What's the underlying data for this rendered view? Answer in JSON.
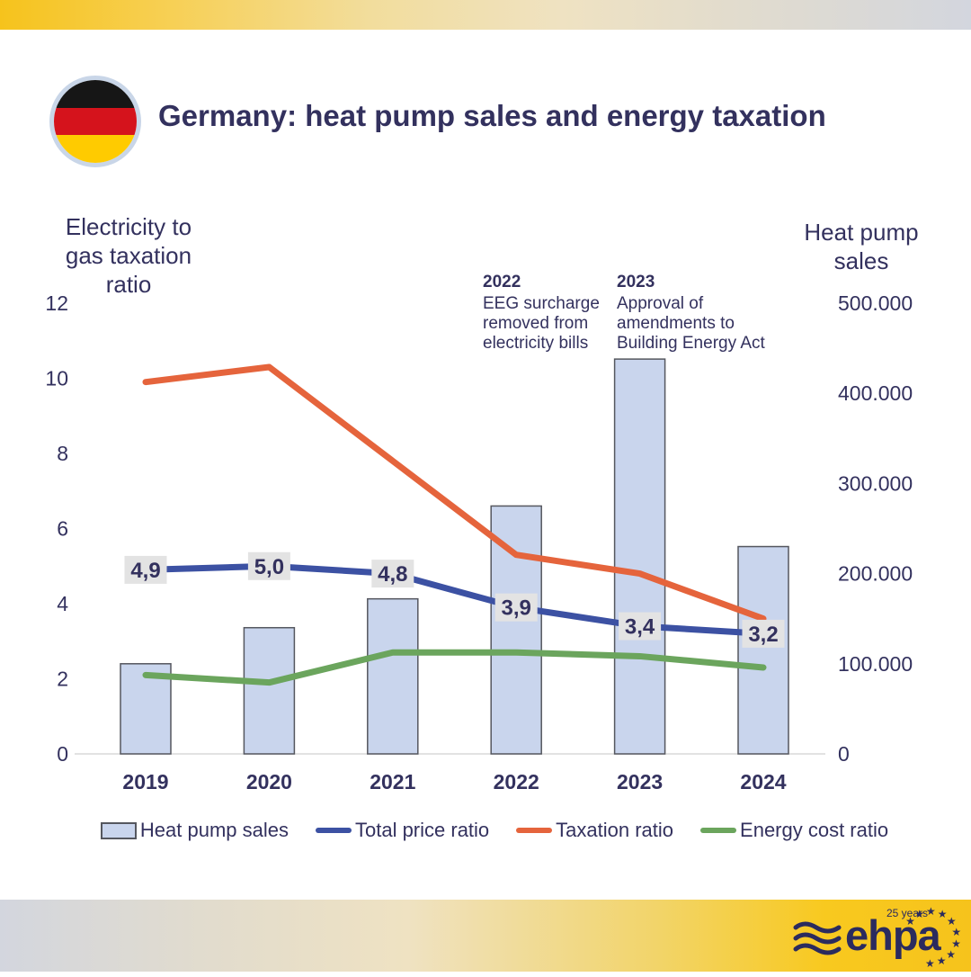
{
  "header": {
    "title": "Germany: heat pump sales and energy taxation"
  },
  "icons": {
    "flag": "germany-flag-icon",
    "waves": "ehpa-waves-icon",
    "stars": "eu-stars-arc-icon"
  },
  "annotations": [
    {
      "year": "2022",
      "lines": [
        "EEG surcharge",
        "removed from",
        "electricity bills"
      ]
    },
    {
      "year": "2023",
      "lines": [
        "Approval of",
        "amendments to",
        "Building Energy Act"
      ]
    }
  ],
  "chart_data": {
    "type": "combo bar+line, dual y-axis",
    "categories": [
      "2019",
      "2020",
      "2021",
      "2022",
      "2023",
      "2024"
    ],
    "left_axis": {
      "title": "Electricity to gas taxation ratio",
      "title_lines": [
        "Electricity to",
        "gas taxation",
        "ratio"
      ],
      "ticks": [
        0,
        2,
        4,
        6,
        8,
        10,
        12
      ],
      "range": [
        0,
        12
      ]
    },
    "right_axis": {
      "title": "Heat pump sales",
      "title_lines": [
        "Heat pump",
        "sales"
      ],
      "ticks": [
        0,
        100000,
        200000,
        300000,
        400000,
        500000
      ],
      "tick_labels": [
        "0",
        "100.000",
        "200.000",
        "300.000",
        "400.000",
        "500.000"
      ],
      "range": [
        0,
        500000
      ]
    },
    "series": [
      {
        "name": "Heat pump sales",
        "type": "bar",
        "axis": "right",
        "color": "#C9D5ED",
        "border": "#55575F",
        "values": [
          100000,
          140000,
          172000,
          275000,
          438000,
          230000
        ]
      },
      {
        "name": "Total price ratio",
        "type": "line",
        "axis": "left",
        "color": "#3C51A3",
        "values": [
          4.9,
          5.0,
          4.8,
          3.9,
          3.4,
          3.2
        ],
        "labels": [
          "4,9",
          "5,0",
          "4,8",
          "3,9",
          "3,4",
          "3,2"
        ]
      },
      {
        "name": "Taxation ratio",
        "type": "line",
        "axis": "left",
        "color": "#E5643C",
        "values": [
          9.9,
          10.3,
          7.8,
          5.3,
          4.8,
          3.6
        ]
      },
      {
        "name": "Energy cost ratio",
        "type": "line",
        "axis": "left",
        "color": "#6BA55D",
        "values": [
          2.1,
          1.9,
          2.7,
          2.7,
          2.6,
          2.3
        ]
      }
    ],
    "legend_position": "bottom",
    "grid": false
  },
  "footer": {
    "logo_text": "ehpa",
    "logo_badge": "25 years",
    "stars": 10
  },
  "colors": {
    "navy": "#33315E",
    "blue": "#3C51A3",
    "orange": "#E5643C",
    "green": "#6BA55D",
    "bar_fill": "#C9D5ED",
    "bar_border": "#55575F",
    "label_bg": "#E3E3E3",
    "axis_line": "#D8D8D8",
    "band_yellow": "#F6C31C",
    "band_cream": "#EFE2C2",
    "band_gray": "#D3D6DE",
    "flag_black": "#161616",
    "flag_red": "#D5131C",
    "flag_gold": "#FFCB00",
    "flag_ring": "#C9D6E8"
  }
}
